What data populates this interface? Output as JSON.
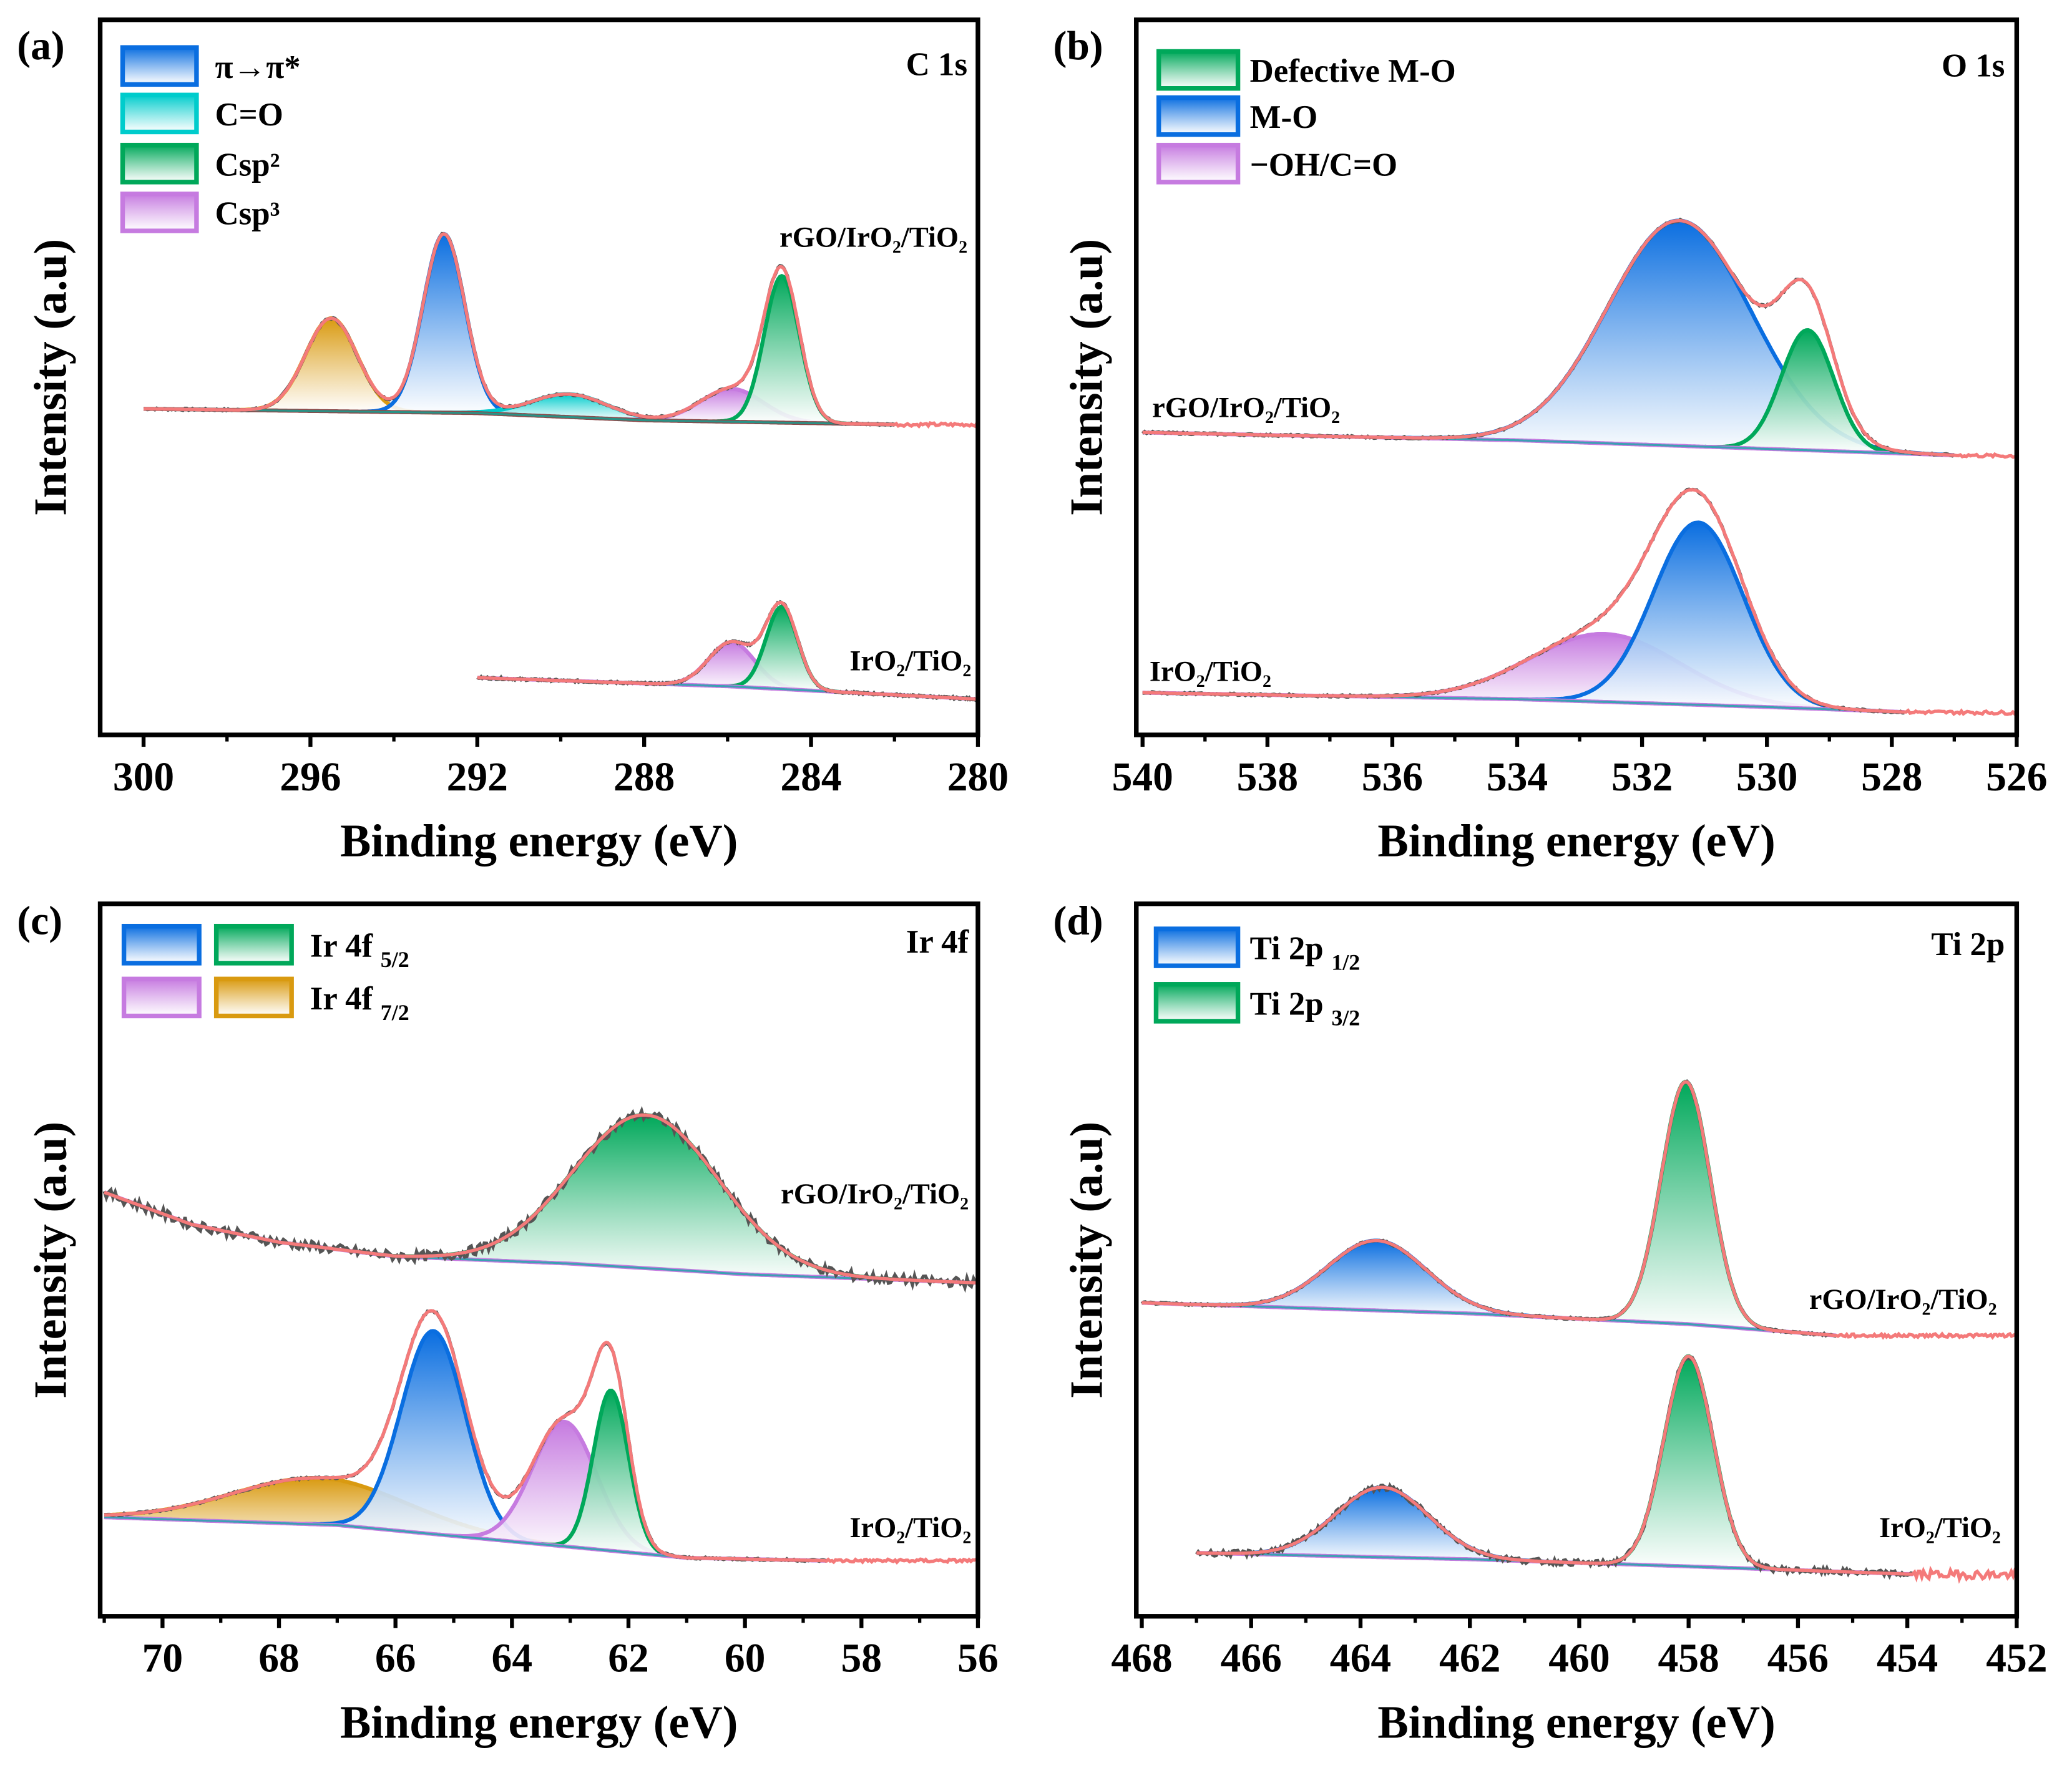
{
  "chart_data": [
    {
      "type": "line",
      "panel_label": "(a)",
      "element_label": "C 1s",
      "xlabel": "Binding energy (eV)",
      "ylabel": "Intensity (a.u)",
      "xlim": [
        301.04,
        280
      ],
      "ylim": [
        0,
        100
      ],
      "xticks": [
        300,
        296,
        292,
        288,
        284,
        280
      ],
      "legend": [
        {
          "label": "π→π*",
          "colors": [
            "#0a6ee0"
          ]
        },
        {
          "label": "C=O",
          "colors": [
            "#00cccc"
          ]
        },
        {
          "label": "Csp²",
          "colors": [
            "#00a85a"
          ]
        },
        {
          "label": "Csp³",
          "colors": [
            "#c67be0"
          ]
        }
      ],
      "samples": [
        {
          "name": "rGO/IrO₂/TiO₂",
          "range": [
            300,
            282
          ],
          "envelope_end": 280,
          "baseline": [
            [
              300,
              45.6
            ],
            [
              292,
              45.0
            ],
            [
              288,
              44.0
            ],
            [
              282,
              43.4
            ],
            [
              280,
              43.4
            ]
          ],
          "peaks": [
            {
              "center": 295.5,
              "height": 13,
              "sigma": 0.62,
              "color": "#d99a10"
            },
            {
              "center": 292.8,
              "height": 25,
              "sigma": 0.5,
              "color": "#0a6ee0"
            },
            {
              "center": 289.8,
              "height": 3.2,
              "sigma": 0.9,
              "color": "#00cccc"
            },
            {
              "center": 285.9,
              "height": 4.6,
              "sigma": 0.75,
              "color": "#c67be0"
            },
            {
              "center": 284.7,
              "height": 20.5,
              "sigma": 0.42,
              "color": "#00a85a"
            }
          ]
        },
        {
          "name": "IrO₂/TiO₂",
          "range": [
            292,
            280
          ],
          "envelope_end": 280,
          "baseline": [
            [
              292,
              8.0
            ],
            [
              286,
              6.8
            ],
            [
              280,
              5.0
            ]
          ],
          "peaks": [
            {
              "center": 285.9,
              "height": 6.2,
              "sigma": 0.55,
              "color": "#c67be0"
            },
            {
              "center": 284.7,
              "height": 11.5,
              "sigma": 0.38,
              "color": "#00a85a"
            }
          ]
        }
      ]
    },
    {
      "type": "line",
      "panel_label": "(b)",
      "element_label": "O 1s",
      "xlabel": "Binding energy (eV)",
      "ylabel": "Intensity (a.u)",
      "xlim": [
        540.1,
        526
      ],
      "ylim": [
        0,
        100
      ],
      "xticks": [
        540,
        538,
        536,
        534,
        532,
        530,
        528,
        526
      ],
      "legend": [
        {
          "label": "Defective M-O",
          "colors": [
            "#00a85a"
          ]
        },
        {
          "label": "M-O",
          "colors": [
            "#0a6ee0"
          ]
        },
        {
          "label": "−OH/C=O",
          "colors": [
            "#c67be0"
          ]
        }
      ],
      "samples": [
        {
          "name": "rGO/IrO₂/TiO₂",
          "range": [
            540,
            527
          ],
          "envelope_end": 526,
          "baseline": [
            [
              540,
              42.3
            ],
            [
              534,
              41.2
            ],
            [
              530,
              40.0
            ],
            [
              527,
              39.1
            ],
            [
              526,
              39.0
            ]
          ],
          "peaks": [
            {
              "center": 531.4,
              "height": 31.5,
              "sigma": 1.15,
              "color": "#0a6ee0"
            },
            {
              "center": 529.35,
              "height": 16.8,
              "sigma": 0.42,
              "color": "#00a85a"
            }
          ]
        },
        {
          "name": "IrO₂/TiO₂",
          "range": [
            540,
            527.8
          ],
          "envelope_end": 526,
          "baseline": [
            [
              540,
              5.9
            ],
            [
              534,
              5.0
            ],
            [
              530,
              3.9
            ],
            [
              527.8,
              3.2
            ],
            [
              526,
              3.1
            ]
          ],
          "peaks": [
            {
              "center": 532.6,
              "height": 9.5,
              "sigma": 1.2,
              "color": "#c67be0"
            },
            {
              "center": 531.1,
              "height": 25.5,
              "sigma": 0.72,
              "color": "#0a6ee0"
            }
          ]
        }
      ]
    },
    {
      "type": "line",
      "panel_label": "(c)",
      "element_label": "Ir 4f",
      "xlabel": "Binding energy (eV)",
      "ylabel": "Intensity (a.u)",
      "xlim": [
        71.07,
        56
      ],
      "ylim": [
        0,
        100
      ],
      "xticks": [
        70,
        68,
        66,
        64,
        62,
        60,
        58,
        56
      ],
      "legend": [
        {
          "label": "Ir 4f",
          "sub": "5/2",
          "colors": [
            "#0a6ee0",
            "#00a85a"
          ]
        },
        {
          "label": "Ir 4f",
          "sub": "7/2",
          "colors": [
            "#c67be0",
            "#d99a10"
          ]
        }
      ],
      "samples": [
        {
          "name": "rGO/IrO₂/TiO₂",
          "range": [
            71,
            56
          ],
          "envelope_end": 56,
          "baseline": [
            [
              71,
              59.5
            ],
            [
              69.5,
              55
            ],
            [
              68,
              52.5
            ],
            [
              66,
              50.5
            ],
            [
              63,
              49.5
            ],
            [
              60,
              48
            ],
            [
              56,
              46.8
            ]
          ],
          "peaks": [
            {
              "center": 61.7,
              "height": 21.5,
              "sigma": 1.25,
              "color": "#00a85a"
            }
          ]
        },
        {
          "name": "IrO₂/TiO₂",
          "range": [
            71,
            58.6
          ],
          "envelope_end": 56,
          "baseline": [
            [
              71,
              13.9
            ],
            [
              67,
              12.8
            ],
            [
              64,
              10.5
            ],
            [
              61,
              8.2
            ],
            [
              58.6,
              7.8
            ],
            [
              56,
              7.8
            ]
          ],
          "peaks": [
            {
              "center": 67.3,
              "height": 6.5,
              "sigma": 1.5,
              "color": "#d99a10"
            },
            {
              "center": 65.35,
              "height": 28.5,
              "sigma": 0.55,
              "color": "#0a6ee0"
            },
            {
              "center": 63.1,
              "height": 17.5,
              "sigma": 0.55,
              "color": "#c67be0"
            },
            {
              "center": 62.3,
              "height": 22.5,
              "sigma": 0.3,
              "color": "#00a85a"
            }
          ]
        }
      ]
    },
    {
      "type": "line",
      "panel_label": "(d)",
      "element_label": "Ti 2p",
      "xlabel": "Binding energy (eV)",
      "ylabel": "Intensity (a.u)",
      "xlim": [
        468.1,
        452
      ],
      "ylim": [
        0,
        100
      ],
      "xticks": [
        468,
        466,
        464,
        462,
        460,
        458,
        456,
        454,
        452
      ],
      "legend": [
        {
          "label": "Ti 2p",
          "sub": "1/2",
          "colors": [
            "#0a6ee0"
          ]
        },
        {
          "label": "Ti 2p",
          "sub": "3/2",
          "colors": [
            "#00a85a"
          ]
        }
      ],
      "samples": [
        {
          "name": "rGO/IrO₂/TiO₂",
          "range": [
            468,
            455.3
          ],
          "envelope_end": 452,
          "baseline": [
            [
              468,
              44.0
            ],
            [
              462,
              42.5
            ],
            [
              458,
              41.0
            ],
            [
              455.3,
              39.4
            ],
            [
              452,
              39.4
            ]
          ],
          "peaks": [
            {
              "center": 463.7,
              "height": 9.8,
              "sigma": 0.9,
              "color": "#0a6ee0"
            },
            {
              "center": 458.05,
              "height": 34,
              "sigma": 0.45,
              "color": "#00a85a"
            }
          ]
        },
        {
          "name": "IrO₂/TiO₂",
          "range": [
            467,
            453.9
          ],
          "envelope_end": 452,
          "baseline": [
            [
              467,
              8.9
            ],
            [
              462,
              8.0
            ],
            [
              458,
              7.0
            ],
            [
              453.9,
              5.9
            ],
            [
              452,
              5.8
            ]
          ],
          "peaks": [
            {
              "center": 463.6,
              "height": 9.8,
              "sigma": 0.85,
              "color": "#0a6ee0"
            },
            {
              "center": 458.0,
              "height": 29.5,
              "sigma": 0.45,
              "color": "#00a85a"
            }
          ]
        }
      ]
    }
  ]
}
